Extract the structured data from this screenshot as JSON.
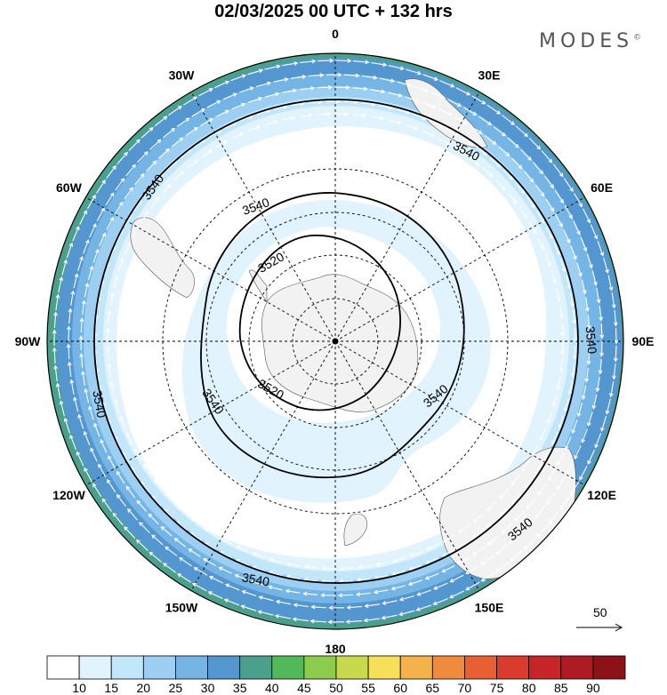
{
  "title": "02/03/2025  00 UTC  + 132 hrs",
  "brand": "MODES",
  "brand_mark": "©",
  "vector_scale_label": "50",
  "longitude_labels": [
    {
      "lon": 0,
      "text": "0"
    },
    {
      "lon": 30,
      "text": "30E"
    },
    {
      "lon": 60,
      "text": "60E"
    },
    {
      "lon": 90,
      "text": "90E"
    },
    {
      "lon": 120,
      "text": "120E"
    },
    {
      "lon": 150,
      "text": "150E"
    },
    {
      "lon": 180,
      "text": "180"
    },
    {
      "lon": -150,
      "text": "150W"
    },
    {
      "lon": -120,
      "text": "120W"
    },
    {
      "lon": -90,
      "text": "90W"
    },
    {
      "lon": -60,
      "text": "60W"
    },
    {
      "lon": -30,
      "text": "30W"
    }
  ],
  "contour_label": "3540",
  "contour_label_inner": "3520",
  "colorbar": {
    "ticks": [
      "10",
      "15",
      "20",
      "25",
      "30",
      "35",
      "40",
      "45",
      "50",
      "55",
      "60",
      "65",
      "70",
      "75",
      "80",
      "85",
      "90"
    ],
    "colors": [
      "#ffffff",
      "#e1f3fd",
      "#c2e6fa",
      "#9ccff2",
      "#74b5e6",
      "#5496d0",
      "#4aa08c",
      "#52b95a",
      "#8ccb4e",
      "#c9d94e",
      "#f6e05a",
      "#f5b14a",
      "#f08a3c",
      "#e75f32",
      "#db3b2d",
      "#c82528",
      "#ae1b22",
      "#8c1218"
    ]
  }
}
